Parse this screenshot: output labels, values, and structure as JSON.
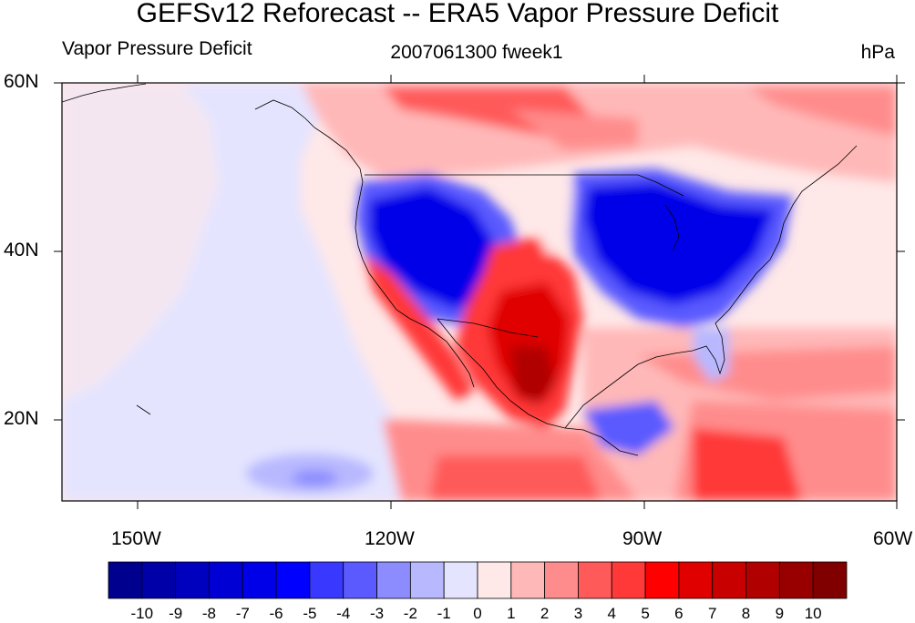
{
  "title": "GEFSv12 Reforecast -- ERA5 Vapor Pressure Deficit",
  "subtitle_left": "Vapor Pressure Deficit",
  "subtitle_center": "2007061300 fweek1",
  "subtitle_right": "hPa",
  "lat_labels": [
    "60N",
    "40N",
    "20N"
  ],
  "lon_labels": [
    "150W",
    "120W",
    "90W",
    "60W"
  ],
  "colorbar": {
    "colors": [
      "#00008f",
      "#0000a8",
      "#0000bf",
      "#0000d4",
      "#0000e8",
      "#0000ff",
      "#3838ff",
      "#5a5aff",
      "#8c8cff",
      "#b8b8ff",
      "#e4e4ff",
      "#ffe8e8",
      "#ffb8b8",
      "#ff8c8c",
      "#ff5a5a",
      "#ff3838",
      "#ff0000",
      "#e00000",
      "#c80000",
      "#b00000",
      "#980000",
      "#800000"
    ],
    "labels": [
      "-10",
      "-9",
      "-8",
      "-7",
      "-6",
      "-5",
      "-4",
      "-3",
      "-2",
      "-1",
      "0",
      "1",
      "2",
      "3",
      "4",
      "5",
      "6",
      "7",
      "8",
      "9",
      "10"
    ]
  },
  "map": {
    "lon_range": [
      -160,
      -60
    ],
    "lat_range": [
      10,
      60
    ]
  }
}
